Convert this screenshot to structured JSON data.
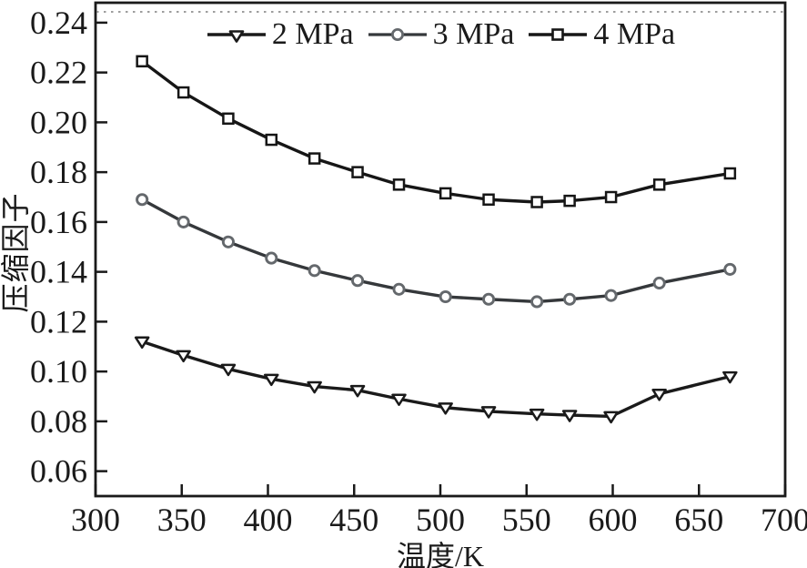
{
  "chart_data": {
    "type": "line",
    "title": "",
    "xlabel": "温度/K",
    "ylabel": "压缩因子",
    "xlim": [
      300,
      700
    ],
    "ylim": [
      0.05,
      0.248
    ],
    "x_ticks": [
      300,
      350,
      400,
      450,
      500,
      550,
      600,
      650,
      700
    ],
    "y_ticks": [
      0.06,
      0.08,
      0.1,
      0.12,
      0.14,
      0.16,
      0.18,
      0.2,
      0.22,
      0.24
    ],
    "grid": false,
    "legend_position": "top-center-inside",
    "x": [
      327,
      351,
      377,
      402,
      427,
      452,
      476,
      503,
      528,
      556,
      575,
      599,
      627,
      668
    ],
    "series": [
      {
        "name": "2 MPa",
        "marker": "triangle-down",
        "line_color": "#1a1a1a",
        "marker_edge_color": "#1a1a1a",
        "marker_fill": "#ffffff",
        "values": [
          0.112,
          0.1065,
          0.101,
          0.097,
          0.094,
          0.0925,
          0.089,
          0.0855,
          0.084,
          0.083,
          0.0825,
          0.082,
          0.091,
          0.098
        ]
      },
      {
        "name": "3 MPa",
        "marker": "circle",
        "line_color": "#35383b",
        "marker_edge_color": "#64686c",
        "marker_fill": "#ffffff",
        "values": [
          0.169,
          0.16,
          0.152,
          0.1455,
          0.1405,
          0.1365,
          0.133,
          0.13,
          0.129,
          0.128,
          0.129,
          0.1305,
          0.1355,
          0.141
        ]
      },
      {
        "name": "4 MPa",
        "marker": "square",
        "line_color": "#161616",
        "marker_edge_color": "#161616",
        "marker_fill": "#ffffff",
        "values": [
          0.2245,
          0.212,
          0.2015,
          0.193,
          0.1855,
          0.18,
          0.175,
          0.1715,
          0.169,
          0.168,
          0.1685,
          0.17,
          0.175,
          0.1795
        ]
      }
    ],
    "axis_color": "#1a1a1a",
    "top_dotted_line_color": "#7d7d7d"
  }
}
